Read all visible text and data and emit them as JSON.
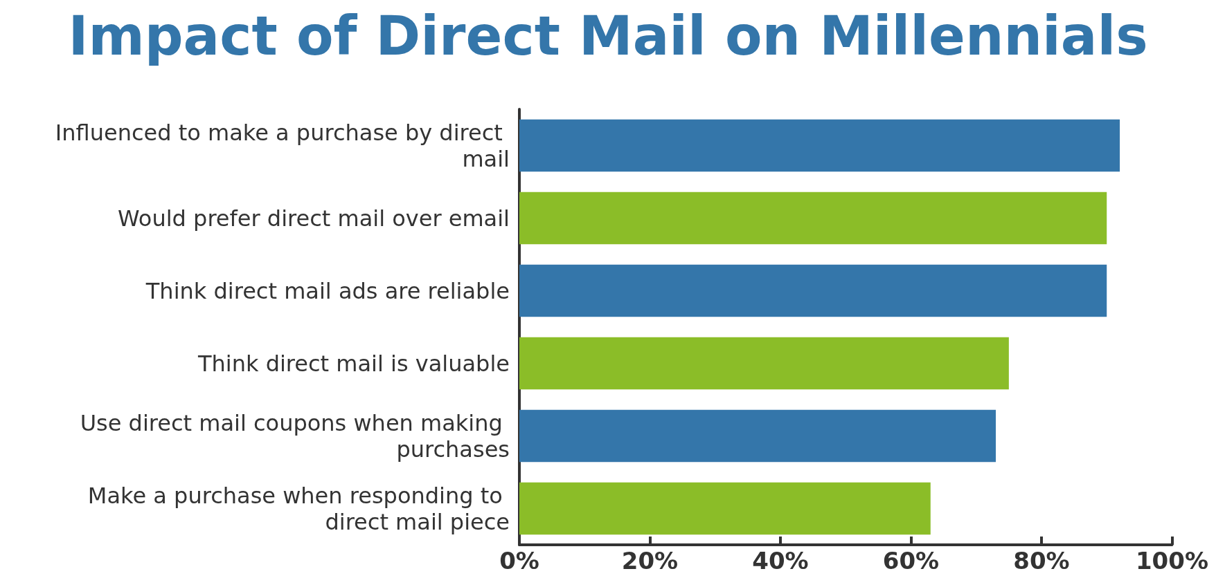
{
  "chart_data": {
    "type": "bar",
    "orientation": "horizontal",
    "title": "Impact of Direct Mail on Millennials",
    "categories": [
      "Influenced to make a purchase by direct mail",
      "Would prefer direct mail over email",
      "Think direct mail ads are reliable",
      "Think direct mail is valuable",
      "Use direct mail coupons when making purchases",
      "Make a purchase when responding to direct mail piece"
    ],
    "values": [
      92,
      90,
      90,
      75,
      73,
      63
    ],
    "colors": [
      "#3476aa",
      "#8bbd28",
      "#3476aa",
      "#8bbd28",
      "#3476aa",
      "#8bbd28"
    ],
    "xlim": [
      0,
      100
    ],
    "xticks": [
      {
        "value": 0,
        "label": "0%"
      },
      {
        "value": 20,
        "label": "20%"
      },
      {
        "value": 40,
        "label": "40%"
      },
      {
        "value": 60,
        "label": "60%"
      },
      {
        "value": 80,
        "label": "80%"
      },
      {
        "value": 100,
        "label": "100%"
      }
    ],
    "grid": false
  }
}
